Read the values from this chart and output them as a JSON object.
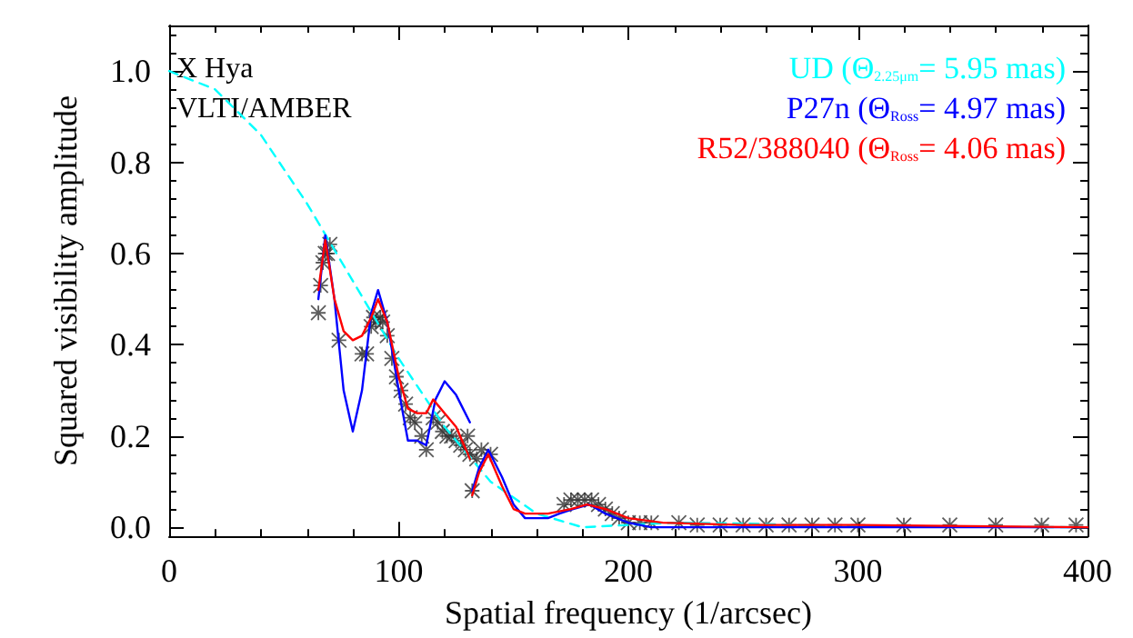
{
  "chart_data": {
    "type": "line",
    "xlabel": "Spatial frequency (1/arcsec)",
    "ylabel": "Squared visibility amplitude",
    "annotations": [
      "X Hya",
      "VLTI/AMBER"
    ],
    "xlim": [
      0,
      400
    ],
    "xticks": [
      0,
      100,
      200,
      300,
      400
    ],
    "ylim": [
      -0.02,
      1.1
    ],
    "yticks": [
      {
        "value": 0,
        "label": "0.0"
      },
      0.2,
      0.4,
      0.6,
      0.8,
      {
        "value": 1,
        "label": "1.0"
      }
    ],
    "grid": false,
    "legend": "top right",
    "series": [
      {
        "type": "scatter",
        "color": "#333333",
        "marker": "cross",
        "x": [
          65,
          66,
          67,
          68,
          69,
          70,
          74,
          84,
          86,
          88,
          89,
          90,
          92,
          93,
          95,
          97,
          99,
          101,
          103,
          105,
          107,
          110,
          112,
          115,
          117,
          119,
          121,
          123,
          125,
          127,
          129,
          130,
          131,
          132,
          134,
          136,
          140,
          172,
          175,
          178,
          181,
          184,
          187,
          190,
          193,
          196,
          200,
          205,
          210,
          222,
          230,
          240,
          250,
          260,
          270,
          280,
          290,
          300,
          320,
          340,
          360,
          380,
          395
        ],
        "values": [
          0.47,
          0.53,
          0.58,
          0.6,
          0.6,
          0.62,
          0.41,
          0.38,
          0.38,
          0.44,
          0.46,
          0.45,
          0.46,
          0.45,
          0.42,
          0.37,
          0.33,
          0.3,
          0.27,
          0.24,
          0.23,
          0.2,
          0.17,
          0.24,
          0.23,
          0.21,
          0.2,
          0.2,
          0.19,
          0.18,
          0.17,
          0.2,
          0.16,
          0.08,
          0.15,
          0.17,
          0.16,
          0.05,
          0.06,
          0.06,
          0.06,
          0.06,
          0.05,
          0.04,
          0.03,
          0.02,
          0.01,
          0.01,
          0.01,
          0.01,
          0.005,
          0.005,
          0.005,
          0.005,
          0.005,
          0.005,
          0.005,
          0.005,
          0.005,
          0.005,
          0.005,
          0.005,
          0.005
        ]
      },
      {
        "name": "UD (Θ$_{2.25μm}$= 5.95 mas)",
        "color": "#00ffff",
        "line_style": "dashed",
        "x": [
          0,
          20,
          40,
          60,
          80,
          100,
          120,
          140,
          160,
          180,
          200,
          220,
          250,
          300,
          400
        ],
        "values": [
          1.0,
          0.96,
          0.86,
          0.71,
          0.54,
          0.37,
          0.22,
          0.1,
          0.03,
          0.0,
          0.005,
          0.01,
          0.008,
          0.002,
          0.0
        ]
      },
      {
        "name": "P27n (Θ$_{Ross}$= 4.97 mas)",
        "color": "#0000ff",
        "line_style": "solid",
        "x": [
          65,
          68,
          72,
          76,
          80,
          84,
          88,
          91,
          95,
          100,
          104,
          108,
          112,
          116,
          120,
          125,
          131
        ],
        "values": [
          0.5,
          0.64,
          0.5,
          0.3,
          0.21,
          0.3,
          0.47,
          0.52,
          0.45,
          0.3,
          0.19,
          0.19,
          0.18,
          0.28,
          0.32,
          0.29,
          0.23
        ]
      },
      {
        "name": "R52/388040 (Θ$_{Ross}$= 4.06 mas)",
        "color": "#ff0000",
        "line_style": "solid",
        "x": [
          65,
          68,
          72,
          76,
          80,
          84,
          88,
          91,
          95,
          100,
          104,
          108,
          112,
          115,
          120,
          125,
          131
        ],
        "values": [
          0.52,
          0.63,
          0.5,
          0.43,
          0.41,
          0.42,
          0.46,
          0.5,
          0.45,
          0.33,
          0.26,
          0.25,
          0.25,
          0.28,
          0.25,
          0.22,
          0.15
        ]
      },
      {
        "color": "#0000ff",
        "line_style": "solid",
        "x": [
          132,
          135,
          139,
          145,
          150,
          155,
          160,
          165,
          170,
          176,
          183,
          190,
          200,
          210,
          250,
          300,
          400
        ],
        "values": [
          0.08,
          0.13,
          0.17,
          0.11,
          0.05,
          0.02,
          0.02,
          0.02,
          0.03,
          0.04,
          0.05,
          0.03,
          0.01,
          0.0,
          0.0,
          0.0,
          0.0
        ]
      },
      {
        "color": "#ff0000",
        "line_style": "solid",
        "x": [
          132,
          135,
          139,
          145,
          150,
          155,
          165,
          175,
          182,
          190,
          200,
          215,
          250,
          300,
          400
        ],
        "values": [
          0.07,
          0.12,
          0.16,
          0.09,
          0.04,
          0.03,
          0.03,
          0.04,
          0.05,
          0.04,
          0.02,
          0.01,
          0.005,
          0.005,
          0.0
        ]
      }
    ]
  }
}
